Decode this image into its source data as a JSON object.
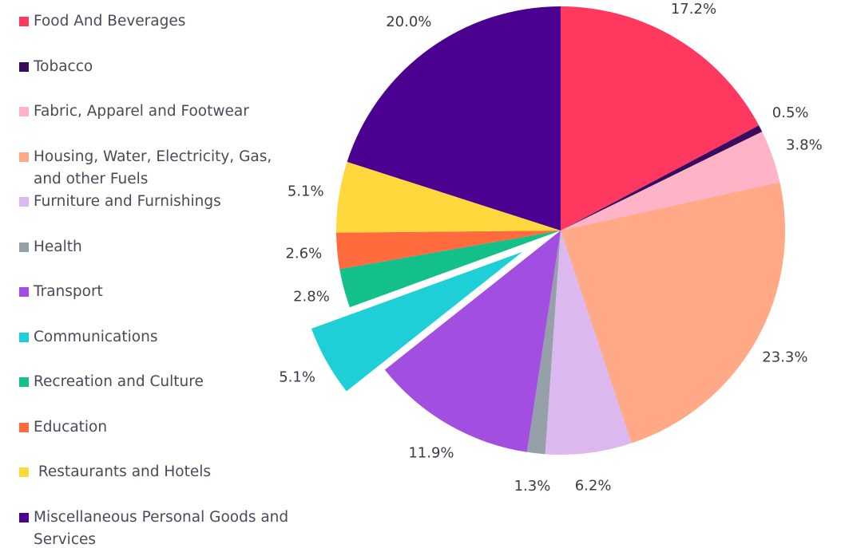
{
  "chart_data": {
    "type": "pie",
    "categories": [
      "Food And Beverages",
      "Tobacco",
      "Fabric, Apparel and Footwear",
      "Housing, Water, Electricity, Gas, and other Fuels",
      "Furniture and Furnishings",
      "Health",
      "Transport",
      "Communications",
      "Recreation and Culture",
      "Education",
      " Restaurants and Hotels",
      "Miscellaneous Personal Goods and Services"
    ],
    "values": [
      17.2,
      0.5,
      3.8,
      23.3,
      6.2,
      1.3,
      11.9,
      5.1,
      2.8,
      2.6,
      5.1,
      20.0
    ],
    "value_labels": [
      "17.2%",
      "0.5%",
      "3.8%",
      "23.3%",
      "6.2%",
      "1.3%",
      "11.9%",
      "5.1%",
      "2.8%",
      "2.6%",
      "5.1%",
      "20.0%"
    ],
    "colors": [
      "#ff3860",
      "#3a0a5e",
      "#ffb3c6",
      "#ffa987",
      "#dcb8f0",
      "#95a0a8",
      "#a24ee0",
      "#1ecfd8",
      "#14c08a",
      "#ff6b3d",
      "#ffd83d",
      "#4b0090"
    ],
    "explode": "Communications",
    "legend": "left"
  }
}
